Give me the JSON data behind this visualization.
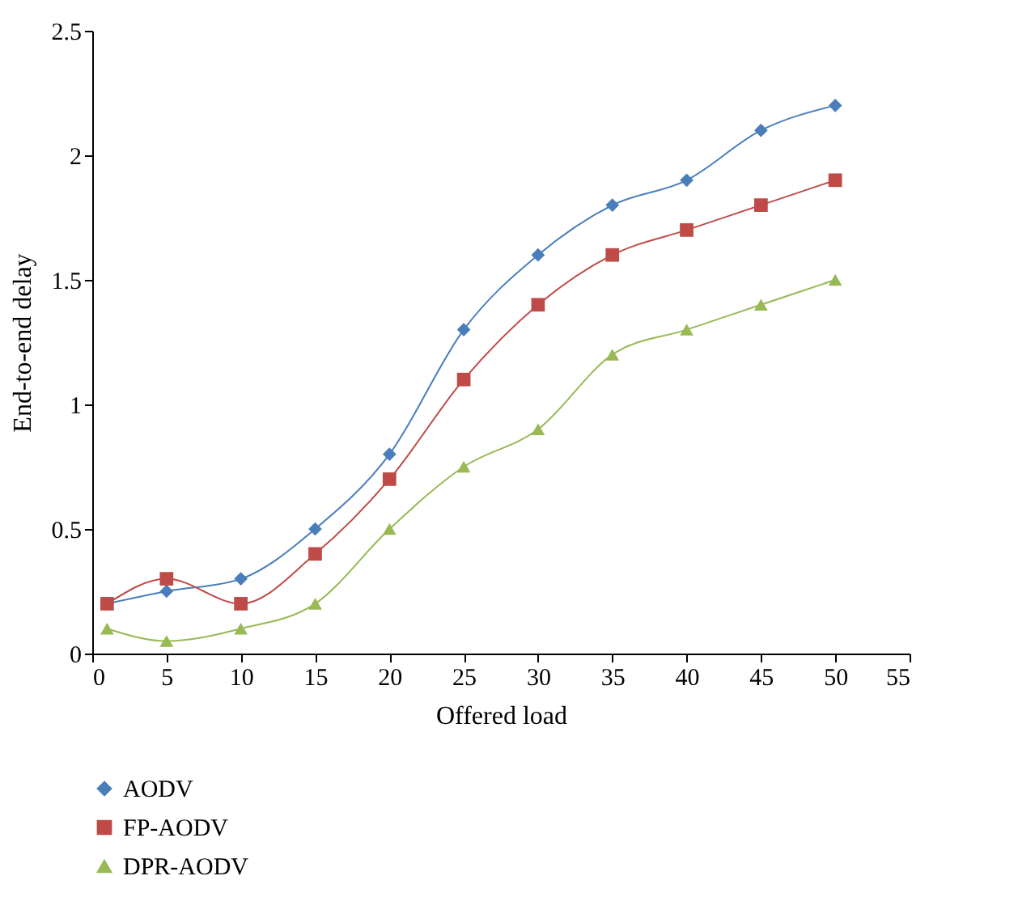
{
  "chart_data": {
    "type": "line",
    "xlabel": "Offered load",
    "ylabel": "End-to-end delay",
    "x": [
      1,
      5,
      10,
      15,
      20,
      25,
      30,
      35,
      40,
      45,
      50
    ],
    "series": [
      {
        "name": "AODV",
        "color": "#4a7ebb",
        "marker": "diamond",
        "values": [
          0.2,
          0.25,
          0.3,
          0.5,
          0.8,
          1.3,
          1.6,
          1.8,
          1.9,
          2.1,
          2.2
        ]
      },
      {
        "name": "FP-AODV",
        "color": "#be4b48",
        "marker": "square",
        "values": [
          0.2,
          0.3,
          0.2,
          0.4,
          0.7,
          1.1,
          1.4,
          1.6,
          1.7,
          1.8,
          1.9
        ]
      },
      {
        "name": "DPR-AODV",
        "color": "#98b954",
        "marker": "triangle",
        "values": [
          0.1,
          0.05,
          0.1,
          0.2,
          0.5,
          0.75,
          0.9,
          1.2,
          1.3,
          1.4,
          1.5
        ]
      }
    ],
    "xlim": [
      0,
      55
    ],
    "xticks": [
      0,
      5,
      10,
      15,
      20,
      25,
      30,
      35,
      40,
      45,
      50,
      55
    ],
    "ylim": [
      0,
      2.5
    ],
    "yticks": [
      0,
      0.5,
      1,
      1.5,
      2,
      2.5
    ],
    "grid": false,
    "legend": "bottom left",
    "line_style": "solid"
  }
}
